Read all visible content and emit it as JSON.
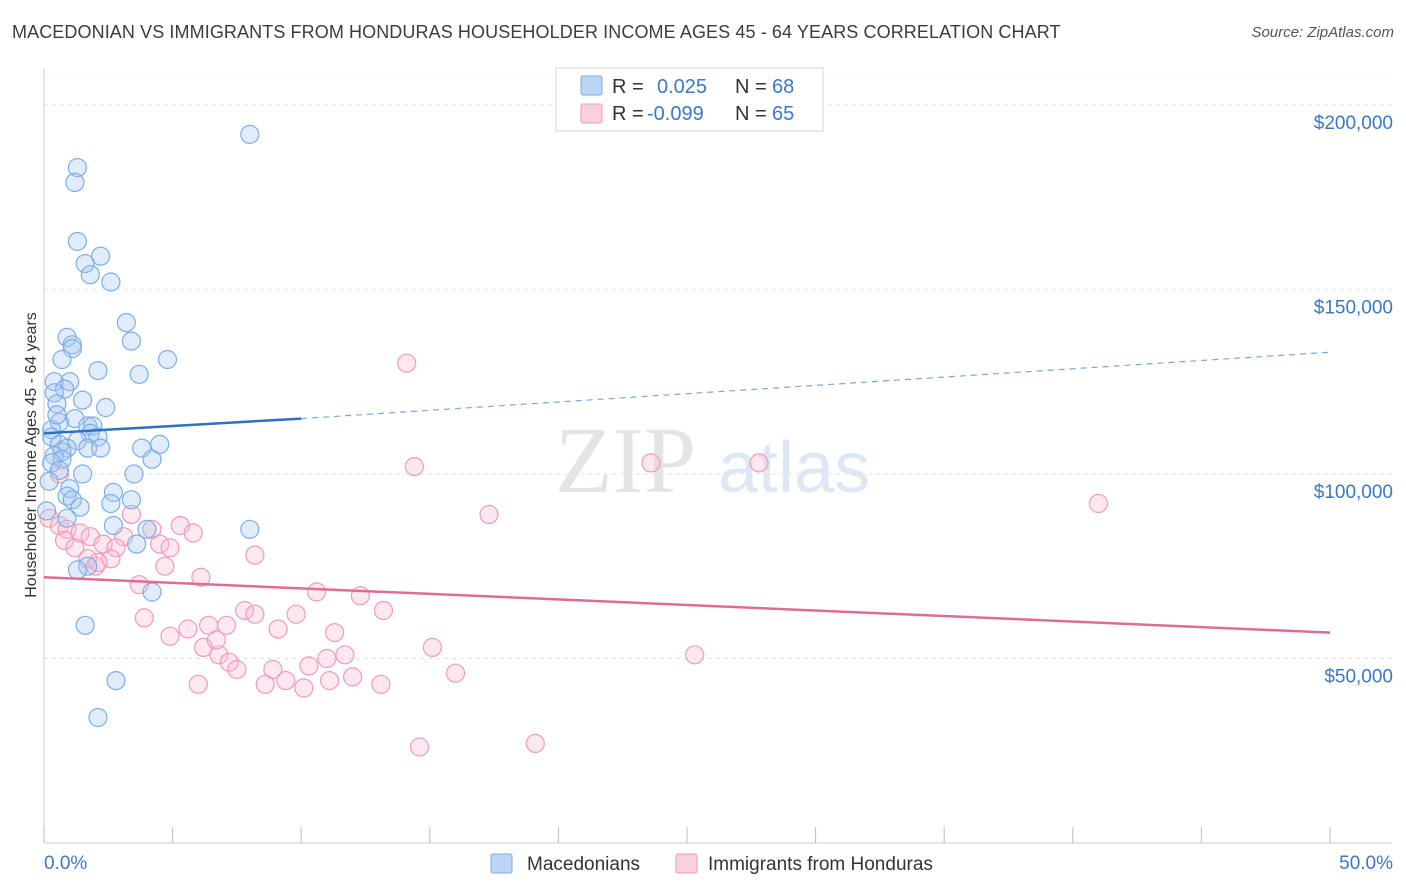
{
  "title": "MACEDONIAN VS IMMIGRANTS FROM HONDURAS HOUSEHOLDER INCOME AGES 45 - 64 YEARS CORRELATION CHART",
  "source": "Source: ZipAtlas.com",
  "watermark": {
    "zip": "ZIP",
    "atlas": "atlas"
  },
  "chart_data": {
    "type": "scatter",
    "title": "MACEDONIAN VS IMMIGRANTS FROM HONDURAS HOUSEHOLDER INCOME AGES 45 - 64 YEARS CORRELATION CHART",
    "xlabel": "",
    "ylabel": "Householder Income Ages 45 - 64 years",
    "xlim": [
      0,
      50
    ],
    "ylim": [
      0,
      210000
    ],
    "x_tick_labels": [
      "0.0%",
      "50.0%"
    ],
    "y_ticks": [
      50000,
      100000,
      150000,
      200000
    ],
    "y_tick_labels": [
      "$50,000",
      "$100,000",
      "$150,000",
      "$200,000"
    ],
    "grid": true,
    "legend_position": "top-center",
    "series": [
      {
        "name": "Macedonians",
        "color": "#7aaee8",
        "line_color": "#2f6fc4",
        "r_label": "R =",
        "r_value": "0.025",
        "n_label": "N =",
        "n_value": "68",
        "trend": {
          "x0": 0,
          "y0": 111000,
          "x1": 10,
          "y1": 115000,
          "x_dash_end": 50,
          "y_dash_end": 133000
        },
        "points": [
          [
            8.0,
            192000
          ],
          [
            1.3,
            183000
          ],
          [
            1.2,
            179000
          ],
          [
            1.3,
            163000
          ],
          [
            2.2,
            159000
          ],
          [
            1.6,
            157000
          ],
          [
            1.8,
            154000
          ],
          [
            2.6,
            152000
          ],
          [
            3.2,
            141000
          ],
          [
            0.9,
            137000
          ],
          [
            3.4,
            136000
          ],
          [
            1.1,
            135000
          ],
          [
            1.1,
            134000
          ],
          [
            0.7,
            131000
          ],
          [
            4.8,
            131000
          ],
          [
            2.1,
            128000
          ],
          [
            3.7,
            127000
          ],
          [
            0.4,
            125000
          ],
          [
            1.0,
            125000
          ],
          [
            0.8,
            123000
          ],
          [
            0.4,
            122000
          ],
          [
            0.5,
            119000
          ],
          [
            1.2,
            115000
          ],
          [
            0.6,
            114000
          ],
          [
            1.7,
            113000
          ],
          [
            1.9,
            113000
          ],
          [
            0.3,
            112000
          ],
          [
            1.8,
            111000
          ],
          [
            2.1,
            110000
          ],
          [
            0.3,
            110000
          ],
          [
            1.3,
            109000
          ],
          [
            0.6,
            108000
          ],
          [
            1.7,
            107000
          ],
          [
            2.2,
            107000
          ],
          [
            0.9,
            107000
          ],
          [
            3.8,
            107000
          ],
          [
            0.7,
            106000
          ],
          [
            4.5,
            108000
          ],
          [
            0.4,
            105000
          ],
          [
            0.7,
            104000
          ],
          [
            0.3,
            103000
          ],
          [
            4.2,
            104000
          ],
          [
            0.6,
            101000
          ],
          [
            1.5,
            100000
          ],
          [
            3.5,
            100000
          ],
          [
            0.2,
            98000
          ],
          [
            1.0,
            96000
          ],
          [
            0.9,
            94000
          ],
          [
            2.7,
            95000
          ],
          [
            3.4,
            93000
          ],
          [
            1.1,
            93000
          ],
          [
            2.6,
            92000
          ],
          [
            1.4,
            91000
          ],
          [
            0.1,
            90000
          ],
          [
            0.9,
            88000
          ],
          [
            2.7,
            86000
          ],
          [
            4.0,
            85000
          ],
          [
            8.0,
            85000
          ],
          [
            3.6,
            81000
          ],
          [
            1.7,
            75000
          ],
          [
            1.3,
            74000
          ],
          [
            4.2,
            68000
          ],
          [
            1.6,
            59000
          ],
          [
            2.8,
            44000
          ],
          [
            2.1,
            34000
          ],
          [
            0.5,
            116000
          ],
          [
            1.5,
            120000
          ],
          [
            2.4,
            118000
          ]
        ]
      },
      {
        "name": "Immigrants from Honduras",
        "color": "#f29ab6",
        "line_color": "#e06c95",
        "r_label": "R =",
        "r_value": "-0.099",
        "n_label": "N =",
        "n_value": "65",
        "trend": {
          "x0": 0,
          "y0": 72000,
          "x1": 50,
          "y1": 57000
        },
        "points": [
          [
            14.1,
            130000
          ],
          [
            23.6,
            103000
          ],
          [
            27.8,
            103000
          ],
          [
            14.4,
            102000
          ],
          [
            0.6,
            100000
          ],
          [
            41.0,
            92000
          ],
          [
            17.3,
            89000
          ],
          [
            0.2,
            88000
          ],
          [
            3.4,
            89000
          ],
          [
            5.3,
            86000
          ],
          [
            0.6,
            86000
          ],
          [
            0.9,
            85000
          ],
          [
            4.2,
            85000
          ],
          [
            1.4,
            84000
          ],
          [
            5.8,
            84000
          ],
          [
            3.1,
            83000
          ],
          [
            1.8,
            83000
          ],
          [
            0.8,
            82000
          ],
          [
            2.3,
            81000
          ],
          [
            4.5,
            81000
          ],
          [
            4.9,
            80000
          ],
          [
            2.8,
            80000
          ],
          [
            1.2,
            80000
          ],
          [
            8.2,
            78000
          ],
          [
            2.6,
            77000
          ],
          [
            1.7,
            77000
          ],
          [
            2.0,
            75000
          ],
          [
            4.7,
            75000
          ],
          [
            6.1,
            72000
          ],
          [
            3.7,
            70000
          ],
          [
            10.6,
            68000
          ],
          [
            12.3,
            67000
          ],
          [
            7.8,
            63000
          ],
          [
            13.2,
            63000
          ],
          [
            9.8,
            62000
          ],
          [
            8.2,
            62000
          ],
          [
            3.9,
            61000
          ],
          [
            6.4,
            59000
          ],
          [
            7.1,
            59000
          ],
          [
            5.6,
            58000
          ],
          [
            9.1,
            58000
          ],
          [
            11.3,
            57000
          ],
          [
            15.1,
            53000
          ],
          [
            6.2,
            53000
          ],
          [
            11.7,
            51000
          ],
          [
            25.3,
            51000
          ],
          [
            6.8,
            51000
          ],
          [
            11.0,
            50000
          ],
          [
            7.2,
            49000
          ],
          [
            10.3,
            48000
          ],
          [
            7.5,
            47000
          ],
          [
            8.9,
            47000
          ],
          [
            16.0,
            46000
          ],
          [
            9.4,
            44000
          ],
          [
            11.1,
            44000
          ],
          [
            6.0,
            43000
          ],
          [
            8.6,
            43000
          ],
          [
            13.1,
            43000
          ],
          [
            10.1,
            42000
          ],
          [
            14.6,
            26000
          ],
          [
            19.1,
            27000
          ],
          [
            12.0,
            45000
          ],
          [
            4.9,
            56000
          ],
          [
            2.1,
            76000
          ],
          [
            6.7,
            55000
          ]
        ]
      }
    ]
  }
}
